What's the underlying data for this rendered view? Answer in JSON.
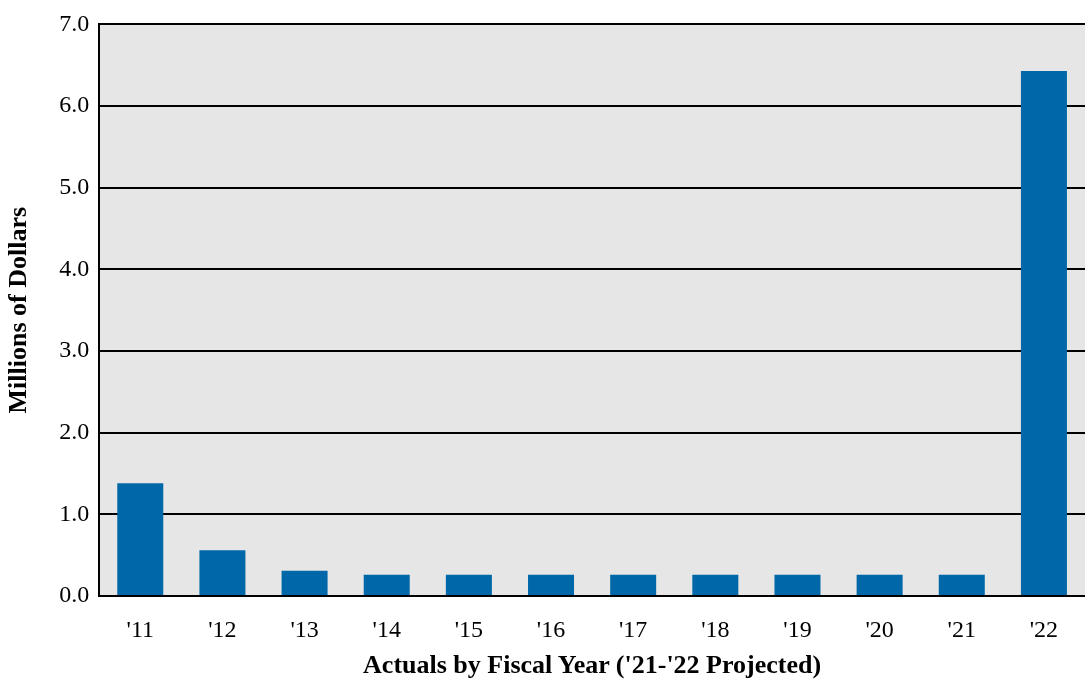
{
  "chart_data": {
    "type": "bar",
    "xlabel": "Actuals by Fiscal Year ('21-'22 Projected)",
    "ylabel": "Millions of Dollars",
    "categories": [
      "'11",
      "'12",
      "'13",
      "'14",
      "'15",
      "'16",
      "'17",
      "'18",
      "'19",
      "'20",
      "'21",
      "'22"
    ],
    "values": [
      1.38,
      0.56,
      0.31,
      0.26,
      0.26,
      0.26,
      0.26,
      0.26,
      0.26,
      0.26,
      0.26,
      6.43
    ],
    "color": "#0068a8",
    "ylim": [
      0,
      7
    ],
    "yticks": [
      {
        "value": 0,
        "label": "0.0"
      },
      {
        "value": 1,
        "label": "1.0"
      },
      {
        "value": 2,
        "label": "2.0"
      },
      {
        "value": 3,
        "label": "3.0"
      },
      {
        "value": 4,
        "label": "4.0"
      },
      {
        "value": 5,
        "label": "5.0"
      },
      {
        "value": 6,
        "label": "6.0"
      },
      {
        "value": 7,
        "label": "7.0"
      }
    ],
    "grid": "y",
    "legend": false
  }
}
